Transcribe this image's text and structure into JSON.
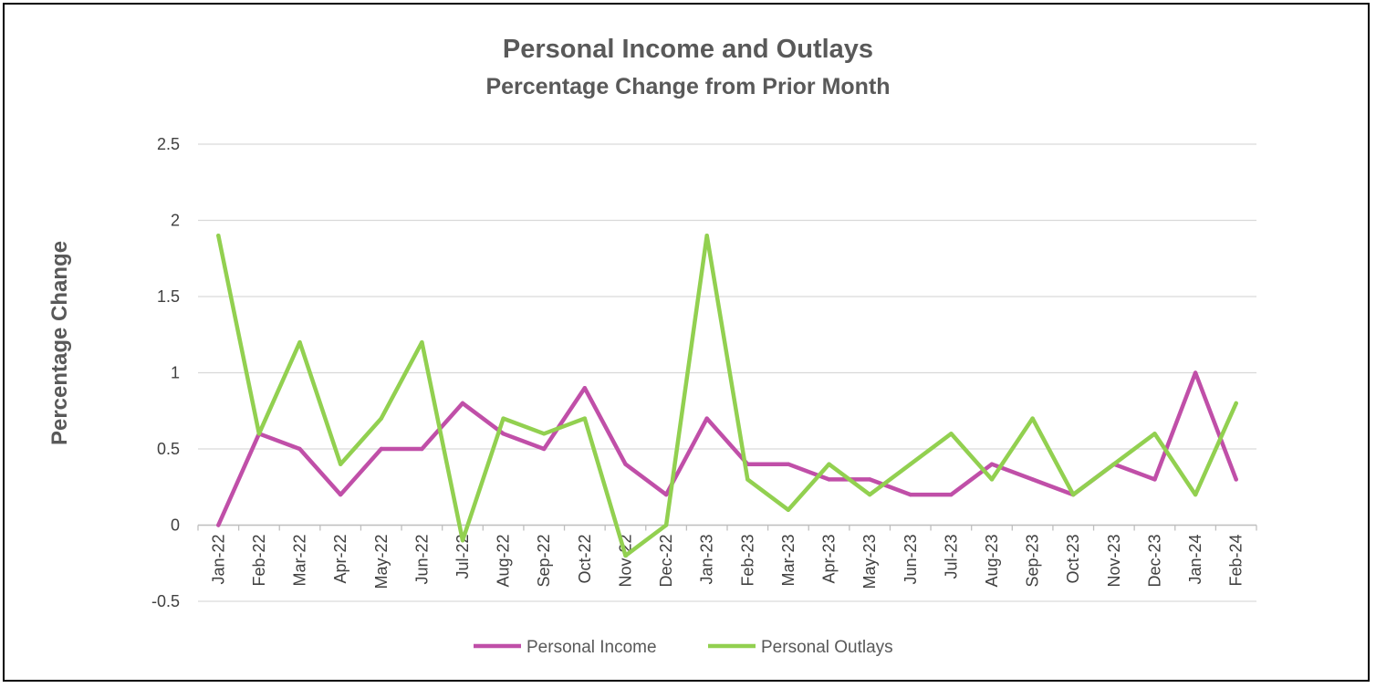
{
  "chart_data": {
    "type": "line",
    "title": "Personal Income and Outlays",
    "subtitle": "Percentage Change from Prior Month",
    "xlabel": "",
    "ylabel": "Percentage Change",
    "ylim": [
      -0.5,
      2.5
    ],
    "yticks": [
      "-0.5",
      "0",
      "0.5",
      "1",
      "1.5",
      "2",
      "2.5"
    ],
    "ytick_values": [
      -0.5,
      0,
      0.5,
      1,
      1.5,
      2,
      2.5
    ],
    "grid": true,
    "legend_position": "bottom",
    "categories": [
      "Jan-22",
      "Feb-22",
      "Mar-22",
      "Apr-22",
      "May-22",
      "Jun-22",
      "Jul-22",
      "Aug-22",
      "Sep-22",
      "Oct-22",
      "Nov-22",
      "Dec-22",
      "Jan-23",
      "Feb-23",
      "Mar-23",
      "Apr-23",
      "May-23",
      "Jun-23",
      "Jul-23",
      "Aug-23",
      "Sep-23",
      "Oct-23",
      "Nov-23",
      "Dec-23",
      "Jan-24",
      "Feb-24"
    ],
    "series": [
      {
        "name": "Personal Income",
        "color": "#c04fa8",
        "values": [
          0,
          0.6,
          0.5,
          0.2,
          0.5,
          0.5,
          0.8,
          0.6,
          0.5,
          0.9,
          0.4,
          0.2,
          0.7,
          0.4,
          0.4,
          0.3,
          0.3,
          0.2,
          0.2,
          0.4,
          0.3,
          0.2,
          0.4,
          0.3,
          1.0,
          0.3
        ]
      },
      {
        "name": "Personal Outlays",
        "color": "#92d050",
        "values": [
          1.9,
          0.6,
          1.2,
          0.4,
          0.7,
          1.2,
          -0.1,
          0.7,
          0.6,
          0.7,
          -0.2,
          0.0,
          1.9,
          0.3,
          0.1,
          0.4,
          0.2,
          0.4,
          0.6,
          0.3,
          0.7,
          0.2,
          0.4,
          0.6,
          0.2,
          0.8
        ]
      }
    ]
  }
}
